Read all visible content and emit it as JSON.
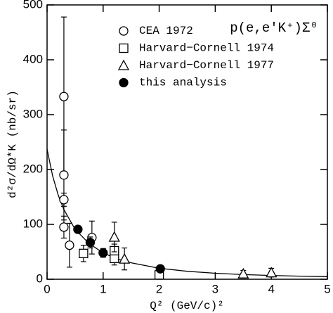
{
  "chart_data": {
    "type": "scatter",
    "annotation": "p(e,e′K⁺)Σ⁰",
    "x_label": "Q² (GeV/c)²",
    "y_label": "d²σ/dΩ*K (nb/sr)",
    "xlim": [
      0,
      5
    ],
    "ylim": [
      0,
      500
    ],
    "xticks": [
      0,
      1,
      2,
      3,
      4,
      5
    ],
    "yticks": [
      0,
      100,
      200,
      300,
      400,
      500
    ],
    "legend": "upper right",
    "series": [
      {
        "name": "CEA 1972",
        "marker": "circle-open",
        "color": "#000000",
        "x": [
          0.3,
          0.3,
          0.3,
          0.3,
          0.4,
          0.8
        ],
        "values": [
          333,
          190,
          145,
          95,
          62,
          76
        ],
        "errors": [
          145,
          82,
          12,
          20,
          40,
          30
        ]
      },
      {
        "name": "Harvard−Cornell 1974",
        "marker": "square-open",
        "color": "#000000",
        "x": [
          0.65,
          1.2,
          1.2,
          2.0
        ],
        "values": [
          47,
          38,
          52,
          8
        ],
        "errors": [
          15,
          12,
          12,
          8
        ]
      },
      {
        "name": "Harvard−Cornell 1977",
        "marker": "triangle-open",
        "color": "#000000",
        "x": [
          1.2,
          1.38,
          3.5,
          4.0
        ],
        "values": [
          77,
          37,
          10,
          12
        ],
        "errors": [
          27,
          20,
          6,
          8
        ]
      },
      {
        "name": "this analysis",
        "marker": "circle-filled",
        "color": "#000000",
        "x": [
          0.55,
          0.77,
          1.0,
          2.02
        ],
        "values": [
          91,
          67,
          48,
          19
        ],
        "errors": [
          6,
          10,
          8,
          6
        ]
      }
    ],
    "curve": {
      "color": "#000000",
      "x": [
        0,
        0.1,
        0.2,
        0.3,
        0.5,
        0.75,
        1,
        1.25,
        1.5,
        2,
        2.5,
        3,
        3.5,
        4,
        4.5,
        5
      ],
      "values": [
        237,
        188,
        153,
        127,
        91,
        65,
        48,
        37,
        30,
        20,
        14.5,
        10.9,
        8.5,
        6.9,
        5.6,
        4.7
      ]
    }
  }
}
